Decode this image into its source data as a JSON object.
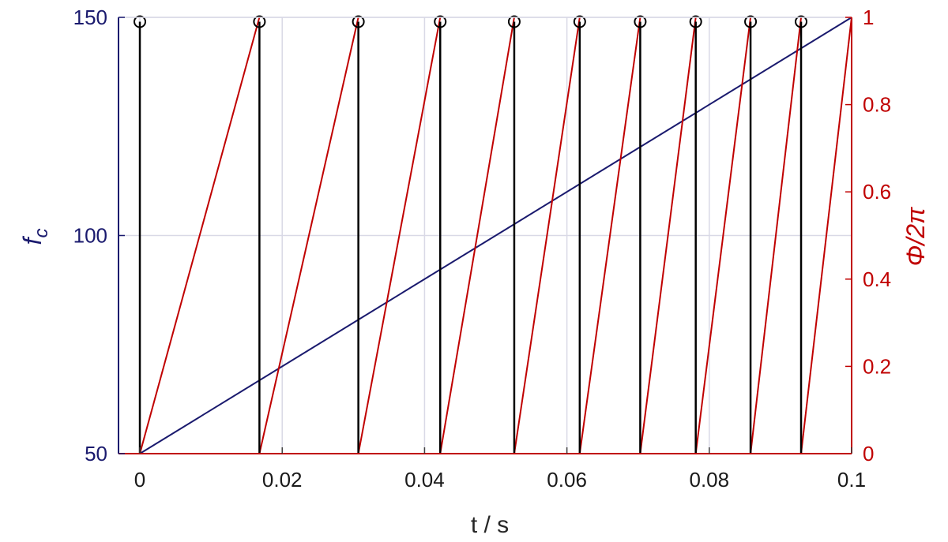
{
  "chart_data": {
    "type": "line",
    "xlabel": "t / s",
    "ylabel_left": "f",
    "ylabel_left_subscript": "c",
    "ylabel_right": "Φ/2π",
    "xlim": [
      -0.003,
      0.1
    ],
    "ylim_left": [
      50,
      150
    ],
    "ylim_right": [
      0,
      1
    ],
    "x_ticks": [
      "0",
      "0.02",
      "0.04",
      "0.06",
      "0.08",
      "0.1"
    ],
    "x_tick_values": [
      0,
      0.02,
      0.04,
      0.06,
      0.08,
      0.1
    ],
    "y_left_ticks": [
      "50",
      "100",
      "150"
    ],
    "y_left_tick_values": [
      50,
      100,
      150
    ],
    "y_right_ticks": [
      "0",
      "0.2",
      "0.4",
      "0.6",
      "0.8",
      "1"
    ],
    "y_right_tick_values": [
      0,
      0.2,
      0.4,
      0.6,
      0.8,
      1
    ],
    "grid": true,
    "colors": {
      "frequency": "#1a1a6e",
      "phase": "#c00000",
      "stem": "#000000",
      "grid": "#d9d9e6",
      "left_axis": "#1a1a6e",
      "right_axis": "#c00000"
    },
    "series": [
      {
        "axis": "left",
        "kind": "line",
        "x": [
          0,
          0.1
        ],
        "y": [
          50,
          150
        ]
      },
      {
        "axis": "right",
        "kind": "sawtooth",
        "reset_times": [
          0,
          0.0168,
          0.0307,
          0.0422,
          0.0526,
          0.0618,
          0.0703,
          0.0781,
          0.0858,
          0.0929,
          0.1
        ]
      },
      {
        "axis": "left",
        "kind": "stem",
        "x": [
          0,
          0.0168,
          0.0307,
          0.0422,
          0.0526,
          0.0618,
          0.0703,
          0.0781,
          0.0858,
          0.0929
        ],
        "y_top": 149,
        "y_base": 50
      }
    ]
  }
}
